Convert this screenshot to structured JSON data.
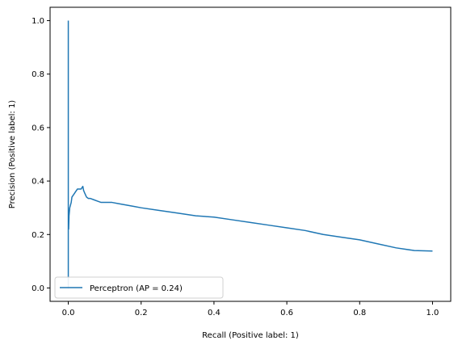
{
  "chart_data": {
    "type": "line",
    "title": "",
    "xlabel": "Recall (Positive label: 1)",
    "ylabel": "Precision (Positive label: 1)",
    "xlim": [
      -0.05,
      1.05
    ],
    "ylim": [
      -0.05,
      1.05
    ],
    "xticks": [
      "0.0",
      "0.2",
      "0.4",
      "0.6",
      "0.8",
      "1.0"
    ],
    "yticks": [
      "0.0",
      "0.2",
      "0.4",
      "0.6",
      "0.8",
      "1.0"
    ],
    "grid": false,
    "legend_position": "lower-left",
    "series": [
      {
        "name": "Perceptron (AP = 0.24)",
        "color": "#1f77b4",
        "x": [
          0.0,
          0.0,
          0.0,
          0.0,
          0.0,
          0.001,
          0.002,
          0.004,
          0.006,
          0.008,
          0.01,
          0.015,
          0.02,
          0.025,
          0.03,
          0.035,
          0.04,
          0.042,
          0.045,
          0.05,
          0.055,
          0.06,
          0.07,
          0.08,
          0.09,
          0.1,
          0.12,
          0.14,
          0.16,
          0.18,
          0.2,
          0.25,
          0.3,
          0.35,
          0.4,
          0.45,
          0.5,
          0.55,
          0.6,
          0.65,
          0.7,
          0.75,
          0.8,
          0.85,
          0.9,
          0.95,
          1.0
        ],
        "y": [
          1.0,
          0.0,
          0.1,
          0.2,
          0.25,
          0.22,
          0.27,
          0.3,
          0.31,
          0.32,
          0.34,
          0.35,
          0.36,
          0.37,
          0.37,
          0.37,
          0.38,
          0.365,
          0.355,
          0.34,
          0.335,
          0.335,
          0.33,
          0.325,
          0.32,
          0.32,
          0.32,
          0.315,
          0.31,
          0.305,
          0.3,
          0.29,
          0.28,
          0.27,
          0.265,
          0.255,
          0.245,
          0.235,
          0.225,
          0.215,
          0.2,
          0.19,
          0.18,
          0.165,
          0.15,
          0.14,
          0.138
        ]
      }
    ]
  }
}
